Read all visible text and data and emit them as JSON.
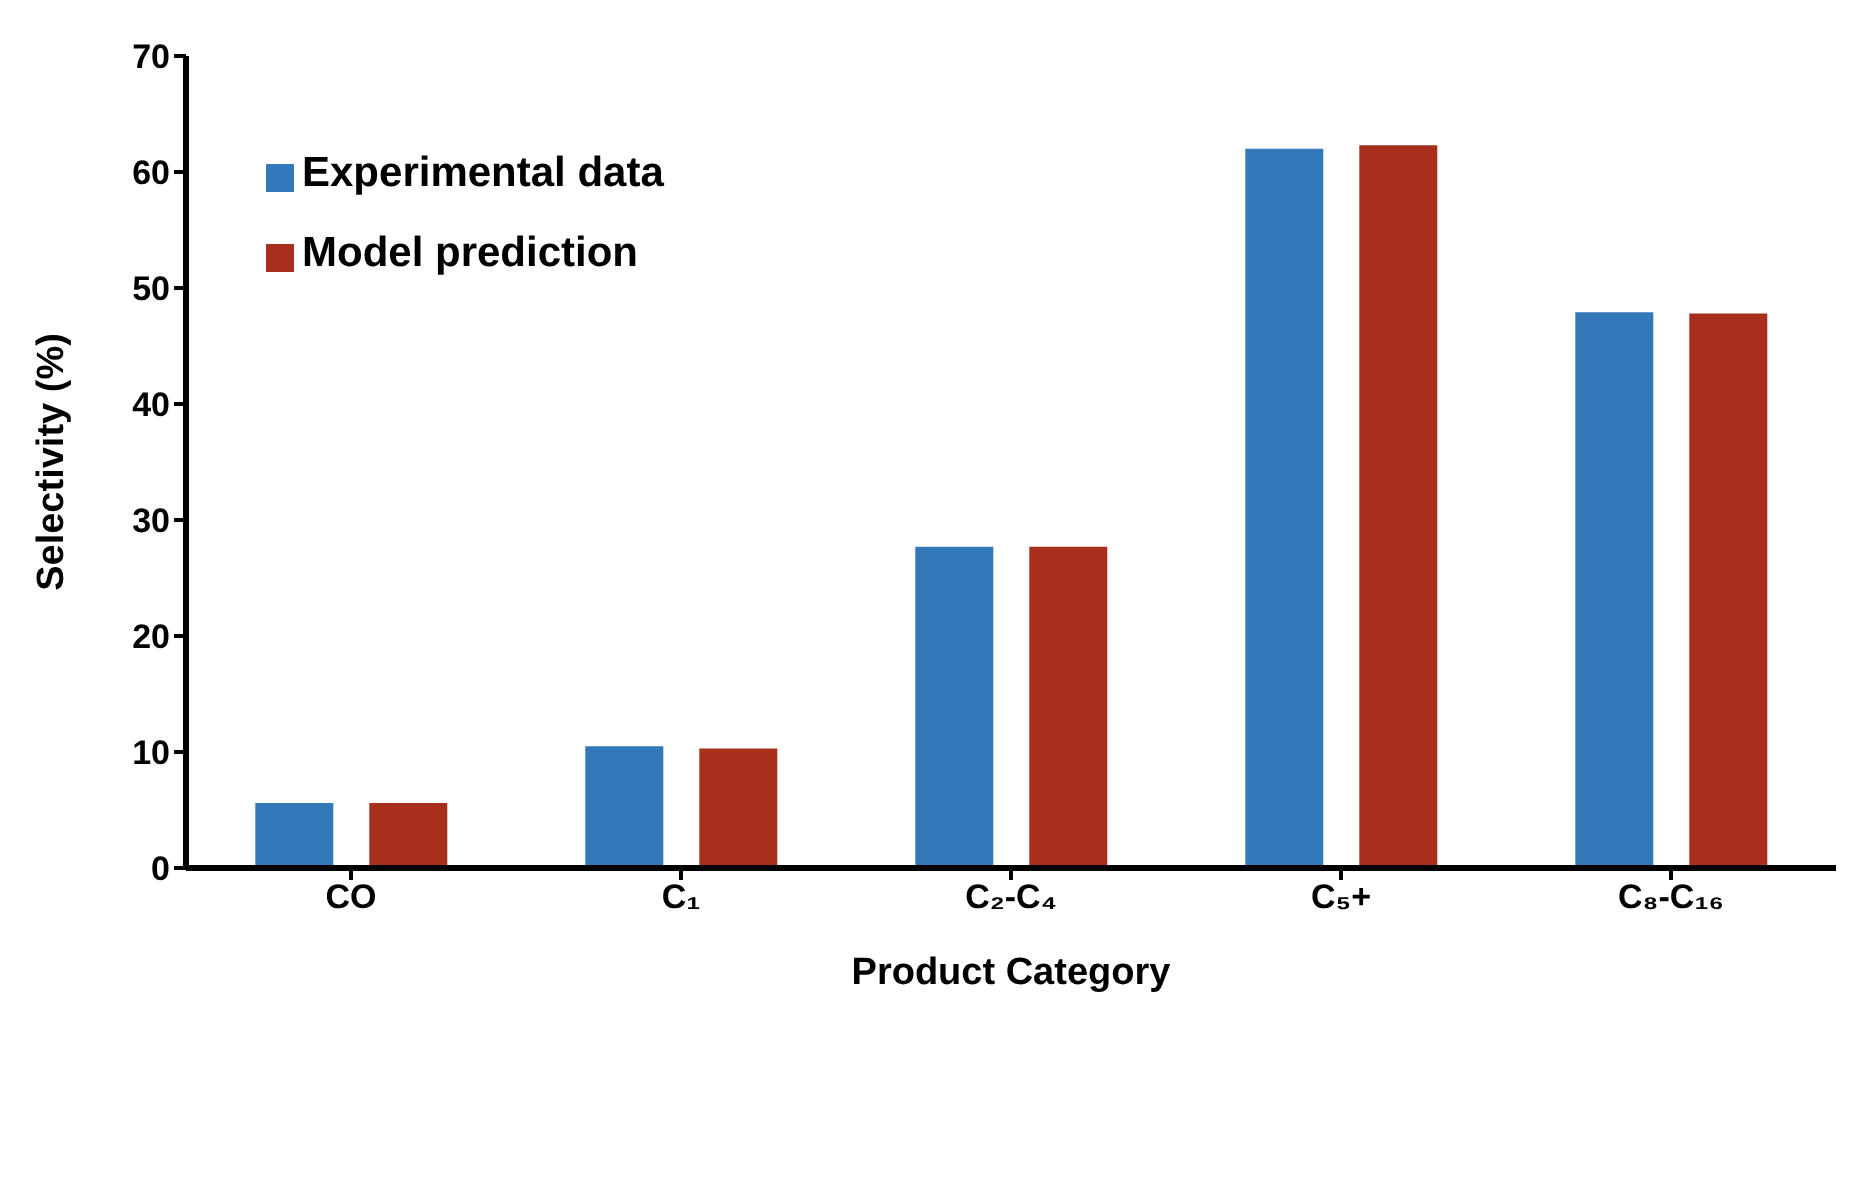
{
  "chart_data": {
    "type": "bar",
    "xlabel": "Product Category",
    "ylabel": "Selectivity (%)",
    "categories": [
      "CO",
      "C₁",
      "C₂-C₄",
      "C₅+",
      "C₈-C₁₆"
    ],
    "series": [
      {
        "name": "Experimental data",
        "color": "#3379ba",
        "values": [
          5.6,
          10.5,
          27.7,
          62.0,
          47.9
        ]
      },
      {
        "name": "Model prediction",
        "color": "#a72f1c",
        "values": [
          5.6,
          10.3,
          27.7,
          62.3,
          47.8
        ]
      }
    ],
    "ylim": [
      0,
      70
    ],
    "yticks": [
      0,
      10,
      20,
      30,
      40,
      50,
      60,
      70
    ],
    "grid": false,
    "legend": "top left"
  }
}
